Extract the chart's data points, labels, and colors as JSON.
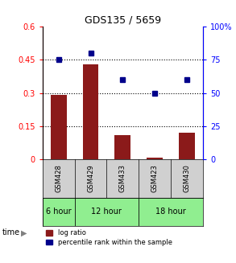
{
  "title": "GDS135 / 5659",
  "samples": [
    "GSM428",
    "GSM429",
    "GSM433",
    "GSM423",
    "GSM430"
  ],
  "log_ratio": [
    0.29,
    0.43,
    0.11,
    0.01,
    0.12
  ],
  "percentile_rank": [
    75,
    80,
    60,
    50,
    60
  ],
  "groups": [
    {
      "label": "6 hour",
      "start": 0,
      "end": 0
    },
    {
      "label": "12 hour",
      "start": 1,
      "end": 2
    },
    {
      "label": "18 hour",
      "start": 3,
      "end": 4
    }
  ],
  "bar_color": "#8B1A1A",
  "point_color": "#00008B",
  "left_ylim": [
    0,
    0.6
  ],
  "right_ylim": [
    0,
    100
  ],
  "left_yticks": [
    0,
    0.15,
    0.3,
    0.45,
    0.6
  ],
  "right_yticks": [
    0,
    25,
    50,
    75,
    100
  ],
  "right_yticklabels": [
    "0",
    "25",
    "50",
    "75",
    "100%"
  ],
  "hlines": [
    0.15,
    0.3,
    0.45
  ],
  "bar_width": 0.5,
  "sample_bg": "#d0d0d0",
  "group_bg": "#90EE90",
  "plot_bg": "#ffffff",
  "label_log": "log ratio",
  "label_pct": "percentile rank within the sample"
}
